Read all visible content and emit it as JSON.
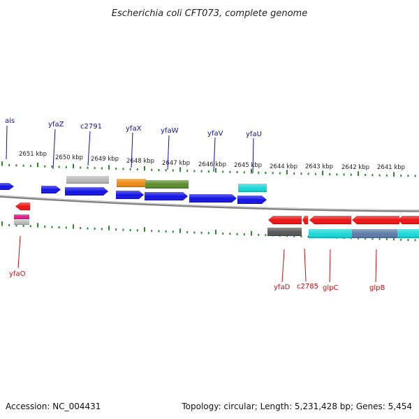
{
  "title": "Escherichia coli CFT073, complete genome",
  "accession_text": "Accession: NC_004431",
  "topology_text": "Topology: circular; Length: 5,231,428 bp; Genes: 5,454",
  "colors": {
    "forward": "#1010e6",
    "reverse": "#ee1111",
    "gray": "#b8b8b8",
    "dark_gray": "#555555",
    "orange": "#f08a10",
    "olive": "#5a8a2a",
    "cyan": "#18d8d8",
    "steel": "#5a7aa8",
    "magenta": "#e0188a",
    "tick": "#2a8a2a",
    "backbone": "#808080"
  },
  "kbp_labels": [
    "2651 kbp",
    "2650 kbp",
    "2649 kbp",
    "2648 kbp",
    "2647 kbp",
    "2646 kbp",
    "2645 kbp",
    "2644 kbp",
    "2643 kbp",
    "2642 kbp",
    "2641 kbp"
  ],
  "top_gene_labels": [
    "ais",
    "yfaZ",
    "c2791",
    "yfaX",
    "yfaW",
    "yfaV",
    "yfaU"
  ],
  "bottom_gene_labels": [
    "yfaO",
    "yfaD",
    "c2785",
    "glpC",
    "glpB"
  ]
}
